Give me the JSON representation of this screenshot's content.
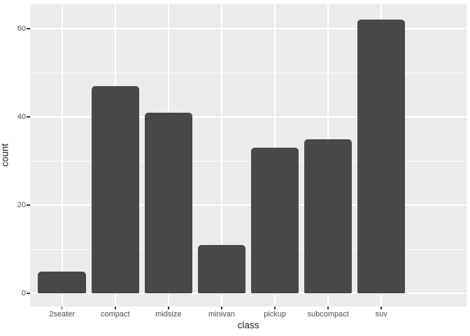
{
  "chart_data": {
    "type": "bar",
    "title": "",
    "xlabel": "class",
    "ylabel": "count",
    "categories": [
      "2seater",
      "compact",
      "midsize",
      "minivan",
      "pickup",
      "subcompact",
      "suv"
    ],
    "values": [
      5,
      47,
      41,
      11,
      33,
      35,
      62
    ],
    "y_major_ticks": [
      0,
      20,
      40,
      60
    ],
    "y_minor_gridlines": [
      10,
      30,
      50
    ],
    "ylim": [
      -3.1,
      65.1
    ],
    "bar_width_fraction": 0.9,
    "legend": "none",
    "grid": "white major+minor horizontal lines; white major vertical lines at category centers",
    "theme": "ggplot2-grey"
  },
  "colors": {
    "bar_fill": "#484848",
    "panel_background": "#ebebeb",
    "gridline": "#ffffff",
    "axis_text": "#4d4d4d",
    "axis_title": "#1a1a1a",
    "tick_mark": "#333333",
    "page_background": "#ffffff"
  }
}
